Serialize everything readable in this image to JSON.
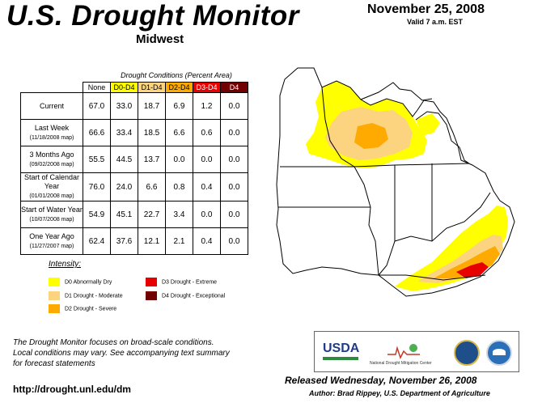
{
  "header": {
    "title": "U.S. Drought Monitor",
    "region": "Midwest",
    "date": "November 25, 2008",
    "valid": "Valid 7 a.m. EST"
  },
  "table": {
    "caption": "Drought Conditions (Percent Area)",
    "columns": [
      "None",
      "D0-D4",
      "D1-D4",
      "D2-D4",
      "D3-D4",
      "D4"
    ],
    "column_colors": [
      "#ffffff",
      "#ffff00",
      "#fcd37f",
      "#ffaa00",
      "#e60000",
      "#730000"
    ],
    "column_text_colors": [
      "#000000",
      "#000000",
      "#000000",
      "#000000",
      "#ffffff",
      "#ffffff"
    ],
    "rows": [
      {
        "label": "Current",
        "sub": "",
        "values": [
          "67.0",
          "33.0",
          "18.7",
          "6.9",
          "1.2",
          "0.0"
        ]
      },
      {
        "label": "Last Week",
        "sub": "(11/18/2008 map)",
        "values": [
          "66.6",
          "33.4",
          "18.5",
          "6.6",
          "0.6",
          "0.0"
        ]
      },
      {
        "label": "3 Months Ago",
        "sub": "(09/02/2008 map)",
        "values": [
          "55.5",
          "44.5",
          "13.7",
          "0.0",
          "0.0",
          "0.0"
        ]
      },
      {
        "label": "Start of Calendar Year",
        "sub": "(01/01/2008 map)",
        "values": [
          "76.0",
          "24.0",
          "6.6",
          "0.8",
          "0.4",
          "0.0"
        ]
      },
      {
        "label": "Start of Water Year",
        "sub": "(10/07/2008 map)",
        "values": [
          "54.9",
          "45.1",
          "22.7",
          "3.4",
          "0.0",
          "0.0"
        ]
      },
      {
        "label": "One Year Ago",
        "sub": "(11/27/2007 map)",
        "values": [
          "62.4",
          "37.6",
          "12.1",
          "2.1",
          "0.4",
          "0.0"
        ]
      }
    ]
  },
  "legend": {
    "title": "Intensity:",
    "items": [
      {
        "label": "D0 Abnormally Dry",
        "color": "#ffff00"
      },
      {
        "label": "D1 Drought - Moderate",
        "color": "#fcd37f"
      },
      {
        "label": "D2 Drought - Severe",
        "color": "#ffaa00"
      },
      {
        "label": "D3 Drought - Extreme",
        "color": "#e60000"
      },
      {
        "label": "D4 Drought - Exceptional",
        "color": "#730000"
      }
    ]
  },
  "footer": {
    "note_lines": [
      "The Drought Monitor focuses on broad-scale conditions.",
      "Local conditions may vary. See accompanying text summary",
      "for forecast statements"
    ],
    "url": "http://drought.unl.edu/dm",
    "released": "Released Wednesday, November 26, 2008",
    "author": "Author: Brad Rippey, U.S. Department of Agriculture"
  },
  "logos": {
    "usda": "USDA",
    "ndmc": "National Drought Mitigation Center"
  }
}
